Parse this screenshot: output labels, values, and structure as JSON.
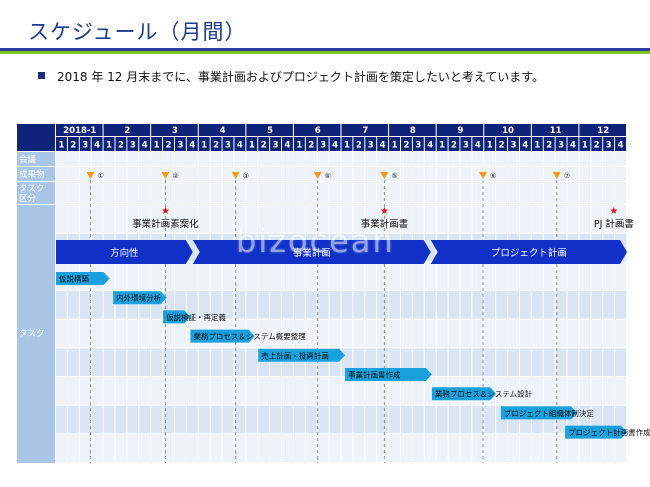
{
  "title": "スケジュール（月間）",
  "bullet": "2018 年 12 月末までに、事業計画およびプロジェクト計画を策定したいと考えています。",
  "months": [
    "2018-1",
    "2",
    "3",
    "4",
    "5",
    "6",
    "7",
    "8",
    "9",
    "10",
    "11",
    "12"
  ],
  "weeks": [
    "1",
    "2",
    "3",
    "4"
  ],
  "row_labels": {
    "meeting": "会議",
    "deliverable": "成果物",
    "task_category": [
      "タスク",
      "区分"
    ],
    "task": "タスク"
  },
  "meetings": [
    {
      "number": "①",
      "week": 2.9
    },
    {
      "number": "②",
      "week": 9.2
    },
    {
      "number": "③",
      "week": 15.1
    },
    {
      "number": "④",
      "week": 22.0
    },
    {
      "number": "⑤",
      "week": 27.6
    },
    {
      "number": "⑥",
      "week": 35.9
    },
    {
      "number": "⑦",
      "week": 42.1
    }
  ],
  "deliverables": [
    {
      "label": "事業計画素案化",
      "week": 9.2
    },
    {
      "label": "事業計画書",
      "week": 27.6
    },
    {
      "label": "PJ 計画書",
      "week": 46.9
    }
  ],
  "phases": [
    {
      "label": "方向性",
      "start_week": 0,
      "end_week": 11.5
    },
    {
      "label": "事業計画",
      "start_week": 11.5,
      "end_week": 31.5
    },
    {
      "label": "プロジェクト計画",
      "start_week": 31.5,
      "end_week": 48
    }
  ],
  "tasks": [
    {
      "label": "仮説構築",
      "start_week": 0,
      "end_week": 4.5
    },
    {
      "label": "内外環境分析",
      "start_week": 4.8,
      "end_week": 9.3
    },
    {
      "label": "仮説検証・再定義",
      "start_week": 9.0,
      "end_week": 11.3
    },
    {
      "label": "業務プロセス＆システム概要整理",
      "start_week": 11.3,
      "end_week": 16.7
    },
    {
      "label": "売上計画・投資計画",
      "start_week": 17.0,
      "end_week": 24.3
    },
    {
      "label": "事業計画書作成",
      "start_week": 24.3,
      "end_week": 31.6
    },
    {
      "label": "業務プロセス＆システム設計",
      "start_week": 31.6,
      "end_week": 37.0
    },
    {
      "label": "プロジェクト組織体制決定",
      "start_week": 37.4,
      "end_week": 43.8
    },
    {
      "label": "プロジェクト計画書作成",
      "start_week": 42.8,
      "end_week": 48
    }
  ],
  "colors": {
    "title": "#1f3b8f",
    "header_dark": "#10237a",
    "label_col": "#a9c6e6",
    "row_light": "#eef3f9",
    "row_mid": "#d9e5f2",
    "phase": "#1030c8",
    "task_bar": "#1aa0dc",
    "meeting_marker": "#f09a1a",
    "star": "#e01515"
  }
}
